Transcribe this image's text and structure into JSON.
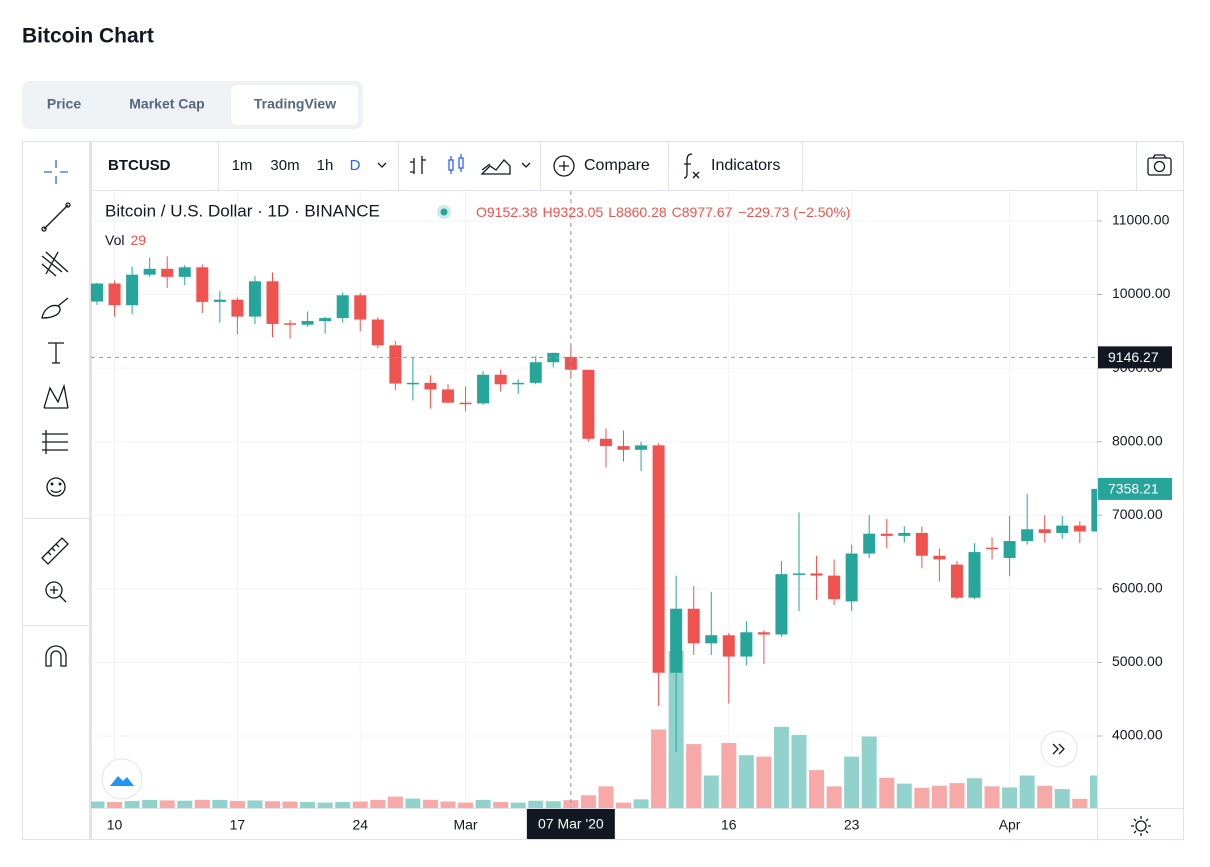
{
  "header": {
    "title": "Bitcoin Chart"
  },
  "tabs": [
    "Price",
    "Market Cap",
    "TradingView"
  ],
  "toolbar": {
    "symbol": "BTCUSD",
    "intervals": [
      "1m",
      "30m",
      "1h",
      "D"
    ],
    "compare": "Compare",
    "indicators": "Indicators"
  },
  "chart_data": {
    "type": "candlestick",
    "title": "Bitcoin / U.S. Dollar · 1D · BINANCE",
    "categories": [
      null,
      "10",
      null,
      null,
      null,
      null,
      null,
      null,
      "17",
      null,
      null,
      null,
      null,
      null,
      null,
      "24",
      null,
      null,
      null,
      null,
      null,
      "Mar",
      null,
      null,
      null,
      null,
      null,
      null,
      null,
      null,
      null,
      null,
      null,
      null,
      null,
      null,
      "16",
      null,
      null,
      null,
      null,
      null,
      null,
      "23",
      null,
      null,
      null,
      null,
      null,
      null,
      null,
      null,
      "Apr",
      null,
      null,
      null,
      null,
      null
    ],
    "open": [
      9905,
      10150,
      9855,
      10270,
      10350,
      10240,
      10370,
      9900,
      9930,
      9700,
      10180,
      9610,
      9590,
      9640,
      9680,
      9990,
      9660,
      9310,
      8790,
      8800,
      8710,
      8530,
      8520,
      8910,
      8780,
      8800,
      9080,
      9152.38,
      8977,
      8040,
      7940,
      7890,
      7950,
      4860,
      5730,
      5260,
      5370,
      5080,
      5410,
      5380,
      6190,
      6210,
      6180,
      5830,
      6480,
      6750,
      6720,
      6760,
      6450,
      6330,
      5880,
      6560,
      6420,
      6650,
      6810,
      6760,
      6860,
      6780
    ],
    "high": [
      10160,
      10190,
      10380,
      10500,
      10520,
      10400,
      10410,
      10050,
      9960,
      10250,
      10300,
      9650,
      9770,
      9700,
      10030,
      10020,
      9690,
      9370,
      9150,
      8900,
      8780,
      8750,
      8960,
      8980,
      8850,
      9160,
      9210,
      9323.05,
      8980,
      8180,
      8150,
      8000,
      7980,
      6180,
      6040,
      5960,
      5400,
      5560,
      5440,
      6380,
      7040,
      6450,
      6400,
      6600,
      7000,
      6950,
      6850,
      6850,
      6550,
      6380,
      6620,
      6700,
      6990,
      7290,
      7000,
      6990,
      6920,
      7400
    ],
    "low": [
      9860,
      9700,
      9730,
      10240,
      10090,
      10130,
      9750,
      9620,
      9460,
      9600,
      9420,
      9400,
      9560,
      9470,
      9620,
      9500,
      9270,
      8700,
      8560,
      8450,
      8530,
      8410,
      8500,
      8680,
      8650,
      8780,
      9010,
      8860.28,
      8000,
      7650,
      7730,
      7600,
      4410,
      3780,
      5100,
      5100,
      4440,
      4960,
      4980,
      5350,
      5700,
      5850,
      5780,
      5700,
      6420,
      6550,
      6630,
      6280,
      6100,
      5860,
      5860,
      6400,
      6170,
      6600,
      6630,
      6680,
      6620,
      6760
    ],
    "close": [
      10150,
      9855,
      10270,
      10350,
      10240,
      10370,
      9900,
      9930,
      9700,
      10180,
      9600,
      9590,
      9640,
      9680,
      9990,
      9660,
      9310,
      8790,
      8800,
      8710,
      8530,
      8520,
      8910,
      8780,
      8800,
      9080,
      9207.4,
      8977.67,
      8040,
      7940,
      7890,
      7950,
      4860,
      5730,
      5260,
      5370,
      5080,
      5410,
      5380,
      6200,
      6210,
      6180,
      5860,
      6480,
      6750,
      6720,
      6760,
      6450,
      6400,
      5880,
      6500,
      6540,
      6650,
      6810,
      6760,
      6860,
      6780,
      7358.21
    ],
    "volume": [
      24,
      22,
      26,
      30,
      28,
      27,
      30,
      30,
      26,
      28,
      25,
      24,
      22,
      20,
      22,
      24,
      30,
      42,
      35,
      30,
      24,
      20,
      30,
      22,
      20,
      27,
      25,
      29,
      47,
      80,
      20,
      32,
      290,
      580,
      236,
      120,
      240,
      195,
      190,
      300,
      270,
      140,
      80,
      190,
      264,
      112,
      90,
      74,
      82,
      92,
      110,
      80,
      76,
      120,
      82,
      70,
      34,
      120
    ],
    "volume_label": "Vol",
    "legend_labels": {
      "open": "O",
      "high": "H",
      "low": "L",
      "close": "C"
    },
    "change_label": "−229.73 (−2.50%)",
    "crosshair": {
      "index": 27,
      "label": "07 Mar '20",
      "price": 9146.27
    },
    "ylim": [
      3022,
      11407
    ],
    "yticks": [
      {
        "value": 4000,
        "label": "4000.00"
      },
      {
        "value": 5000,
        "label": "5000.00"
      },
      {
        "value": 6000,
        "label": "6000.00"
      },
      {
        "value": 7000,
        "label": "7000.00"
      },
      {
        "value": 8000,
        "label": "8000.00"
      },
      {
        "value": 9000,
        "label": "9000.00"
      },
      {
        "value": 10000,
        "label": "10000.00"
      },
      {
        "value": 11000,
        "label": "11000.00"
      }
    ],
    "grid": true,
    "up_color": "#26a69a",
    "down_color": "#ef5350",
    "up_volume_color": "#92d2cc",
    "down_volume_color": "#f7a9a7"
  }
}
